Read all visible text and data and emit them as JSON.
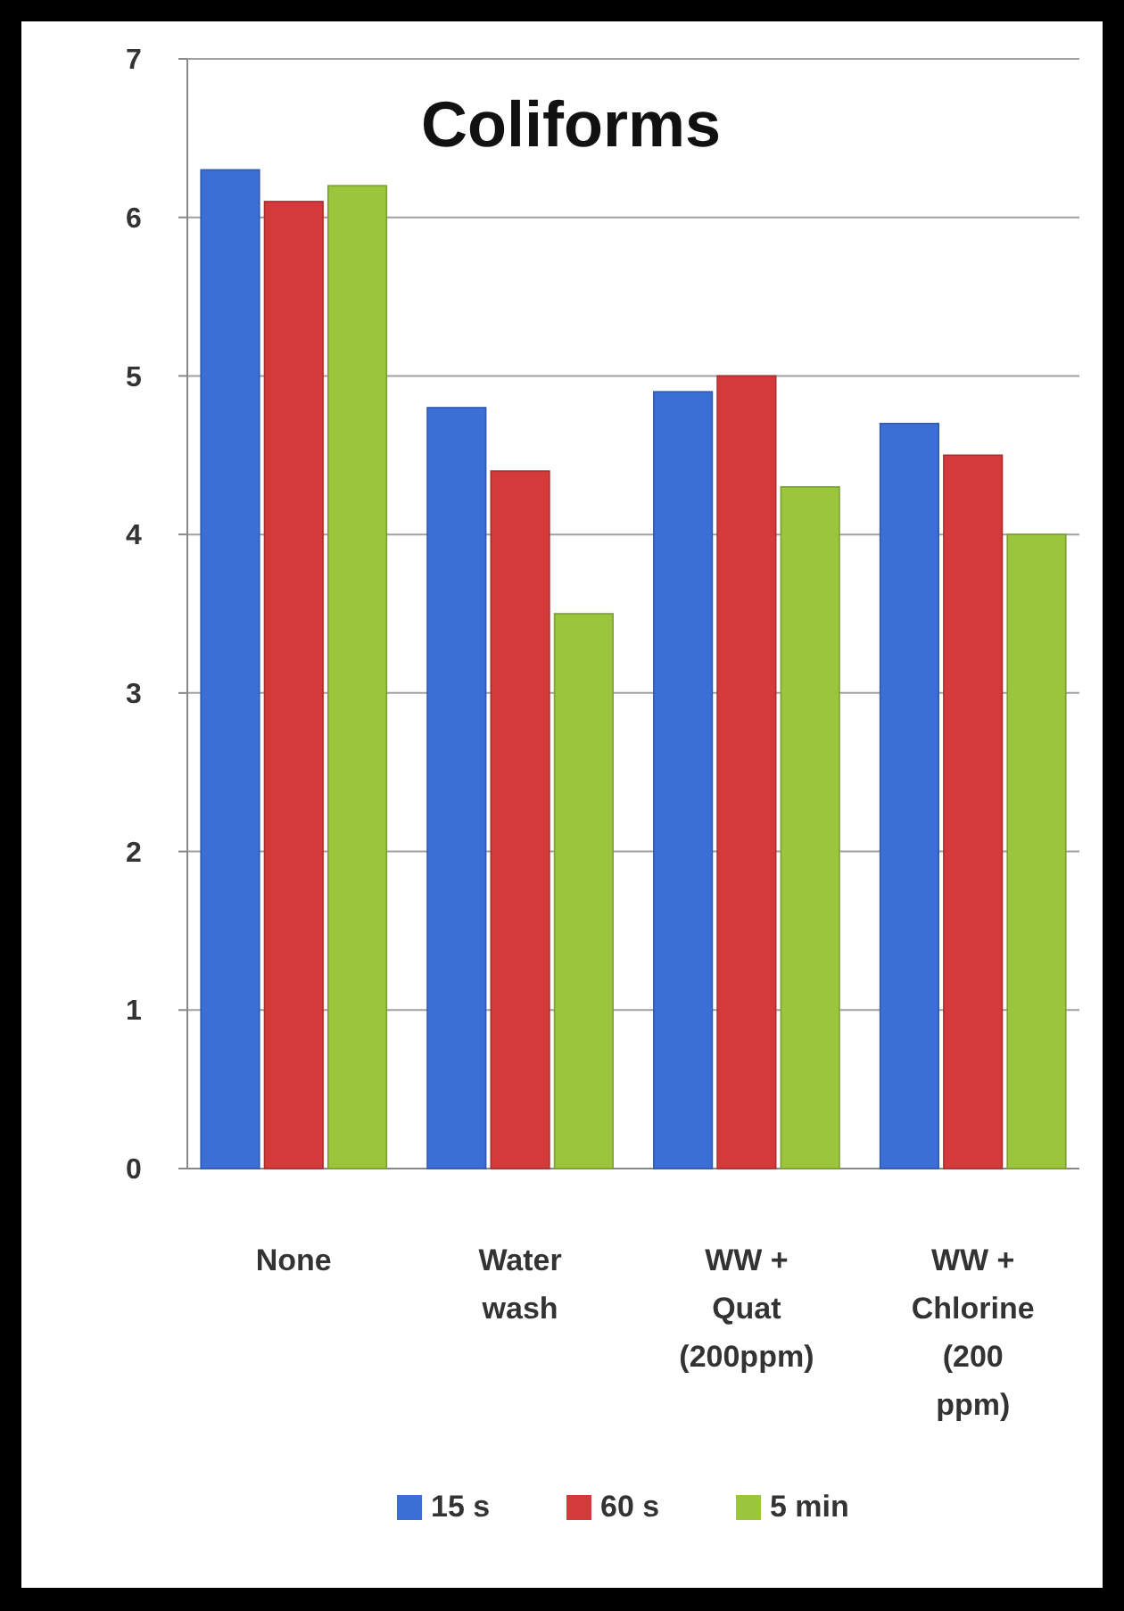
{
  "chart_data": {
    "type": "bar",
    "title": "Coliforms",
    "categories": [
      "None",
      "Water wash",
      "WW + Quat (200ppm)",
      "WW + Chlorine (200 ppm)"
    ],
    "series": [
      {
        "name": "15 s",
        "color": "#3b6fd6",
        "values": [
          6.3,
          4.8,
          4.9,
          4.7
        ]
      },
      {
        "name": "60 s",
        "color": "#d43a3a",
        "values": [
          6.1,
          4.4,
          5.0,
          4.5
        ]
      },
      {
        "name": "5 min",
        "color": "#9bc53d",
        "values": [
          6.2,
          3.5,
          4.3,
          4.0
        ]
      }
    ],
    "ylim": [
      0,
      7
    ],
    "yticks": [
      0,
      1,
      2,
      3,
      4,
      5,
      6,
      7
    ],
    "grid": "y",
    "legend": "bottom"
  }
}
